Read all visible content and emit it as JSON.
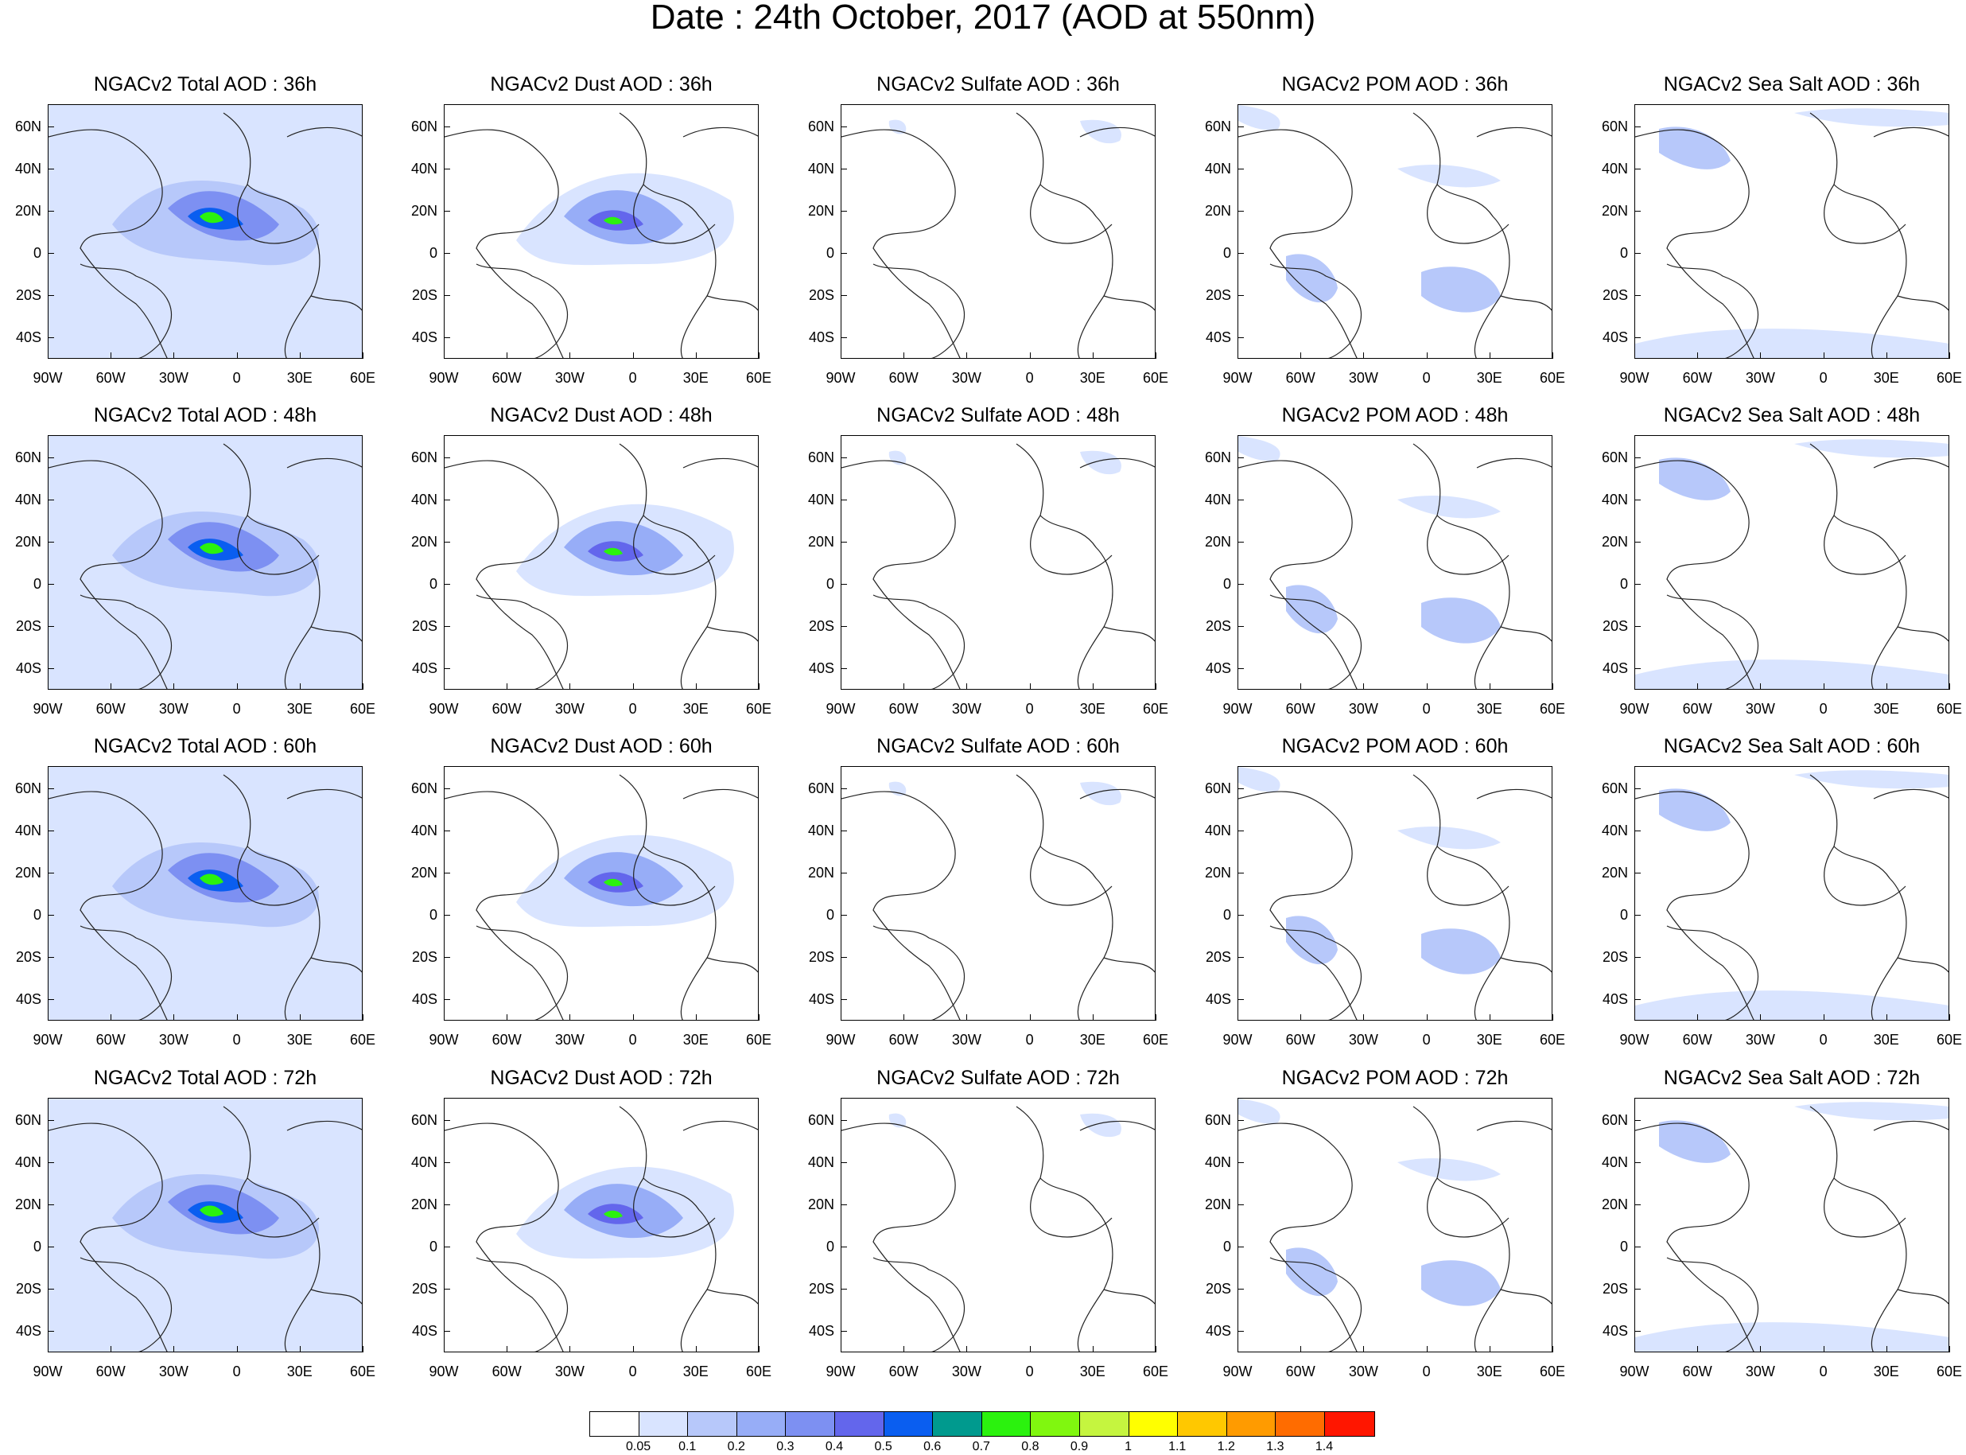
{
  "title": "Date : 24th October, 2017 (AOD at 550nm)",
  "panels": [
    [
      "NGACv2 Total AOD : 36h",
      "NGACv2 Dust AOD : 36h",
      "NGACv2 Sulfate AOD : 36h",
      "NGACv2 POM AOD : 36h",
      "NGACv2 Sea Salt AOD : 36h"
    ],
    [
      "NGACv2 Total AOD : 48h",
      "NGACv2 Dust AOD : 48h",
      "NGACv2 Sulfate AOD : 48h",
      "NGACv2 POM AOD : 48h",
      "NGACv2 Sea Salt AOD : 48h"
    ],
    [
      "NGACv2 Total AOD : 60h",
      "NGACv2 Dust AOD : 60h",
      "NGACv2 Sulfate AOD : 60h",
      "NGACv2 POM AOD : 60h",
      "NGACv2 Sea Salt AOD : 60h"
    ],
    [
      "NGACv2 Total AOD : 72h",
      "NGACv2 Dust AOD : 72h",
      "NGACv2 Sulfate AOD : 72h",
      "NGACv2 POM AOD : 72h",
      "NGACv2 Sea Salt  AOD : 72h"
    ]
  ],
  "lat_labels": [
    "60N",
    "40N",
    "20N",
    "0",
    "20S",
    "40S"
  ],
  "lon_labels": [
    "90W",
    "60W",
    "30W",
    "0",
    "30E",
    "60E"
  ],
  "colorbar": {
    "colors": [
      "#ffffff",
      "#d9e4ff",
      "#b7c8fa",
      "#97adf7",
      "#7d90f2",
      "#6366ec",
      "#0a5ef0",
      "#009a8e",
      "#2bf20e",
      "#80f70f",
      "#c5f53f",
      "#ffff00",
      "#ffc800",
      "#ff9b00",
      "#ff6c00",
      "#ff1600"
    ],
    "labels": [
      "0.05",
      "0.1",
      "0.2",
      "0.3",
      "0.4",
      "0.5",
      "0.6",
      "0.7",
      "0.8",
      "0.9",
      "1",
      "1.1",
      "1.2",
      "1.3",
      "1.4"
    ]
  }
}
